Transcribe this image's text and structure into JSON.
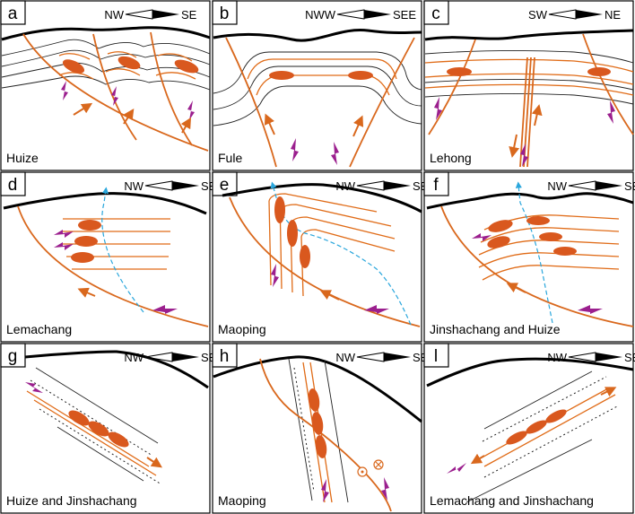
{
  "panels": [
    {
      "id": "a",
      "location": "Huize",
      "orient_left": "NW",
      "orient_right": "SE"
    },
    {
      "id": "b",
      "location": "Fule",
      "orient_left": "NWW",
      "orient_right": "SEE"
    },
    {
      "id": "c",
      "location": "Lehong",
      "orient_left": "SW",
      "orient_right": "NE"
    },
    {
      "id": "d",
      "location": "Lemachang",
      "orient_left": "NW",
      "orient_right": "SE"
    },
    {
      "id": "e",
      "location": "Maoping",
      "orient_left": "NW",
      "orient_right": "SE"
    },
    {
      "id": "f",
      "location": "Jinshachang  and Huize",
      "orient_left": "NW",
      "orient_right": "SE"
    },
    {
      "id": "g",
      "location": "Huize and Jinshachang",
      "orient_left": "NW",
      "orient_right": "SE"
    },
    {
      "id": "h",
      "location": "Maoping",
      "orient_left": "NW",
      "orient_right": "SE"
    },
    {
      "id": "l",
      "location": "Lemachang and Jinshachang",
      "orient_left": "NW",
      "orient_right": "SE"
    }
  ],
  "colors": {
    "ore_body": "#d9581e",
    "fault": "#d9681d",
    "bedding": "#e06b17",
    "arrow": "#9b1f8e",
    "dashed_path": "#29a6dc",
    "outline": "#000000"
  },
  "icons": [
    "orientation-arrow-icon",
    "movement-arrow-icon",
    "strike-slip-symbol-icon"
  ]
}
